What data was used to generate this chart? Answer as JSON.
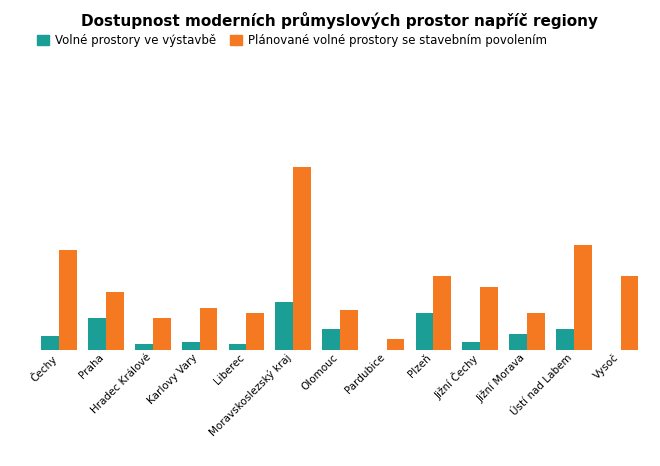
{
  "title": "Dostupnost moderních průmyslových prostor napříč regiony",
  "categories": [
    "Čechy",
    "Praha",
    "Hradec Králové",
    "Karlovy Vary",
    "Liberec",
    "Moravskoslezský kraj",
    "Olomouc",
    "Pardubice",
    "Plzeň",
    "Jižní Čechy",
    "Jižní Morava",
    "Ústí nad Labem",
    "Vysoč"
  ],
  "volne_ve_vystavbe": [
    5,
    12,
    2,
    3,
    2,
    18,
    8,
    0,
    14,
    3,
    6,
    8,
    0
  ],
  "planovane_volne": [
    38,
    22,
    12,
    16,
    14,
    70,
    15,
    4,
    28,
    24,
    14,
    40,
    28
  ],
  "color_teal": "#1a9e96",
  "color_orange": "#f47920",
  "legend_label1": "Volné prostory ve výstavbě",
  "legend_label2": "Plánované volné prostory se stavebním povolením",
  "background_color": "#ffffff",
  "grid_color": "#cccccc",
  "title_fontsize": 11,
  "tick_fontsize": 7.5,
  "legend_fontsize": 8.5
}
